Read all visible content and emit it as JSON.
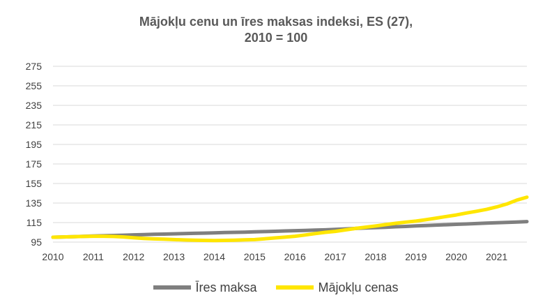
{
  "chart_data": {
    "type": "line",
    "title_line1": "Mājokļu cenu un īres maksas indeksi, ES (27),",
    "title_line2": "2010 = 100",
    "xlabel": "",
    "ylabel": "",
    "x_tick_labels": [
      "2010",
      "2011",
      "2012",
      "2013",
      "2014",
      "2015",
      "2016",
      "2017",
      "2018",
      "2019",
      "2020",
      "2021"
    ],
    "y_ticks": [
      95,
      115,
      135,
      155,
      175,
      195,
      215,
      235,
      255,
      275
    ],
    "ylim": [
      95,
      275
    ],
    "xlim": [
      2010,
      2021.75
    ],
    "grid": "horizontal",
    "legend_position": "bottom",
    "x": [
      2010,
      2010.25,
      2010.5,
      2010.75,
      2011,
      2011.25,
      2011.5,
      2011.75,
      2012,
      2012.25,
      2012.5,
      2012.75,
      2013,
      2013.25,
      2013.5,
      2013.75,
      2014,
      2014.25,
      2014.5,
      2014.75,
      2015,
      2015.25,
      2015.5,
      2015.75,
      2016,
      2016.25,
      2016.5,
      2016.75,
      2017,
      2017.25,
      2017.5,
      2017.75,
      2018,
      2018.25,
      2018.5,
      2018.75,
      2019,
      2019.25,
      2019.5,
      2019.75,
      2020,
      2020.25,
      2020.5,
      2020.75,
      2021,
      2021.25,
      2021.5,
      2021.75
    ],
    "series": [
      {
        "name": "Īres maksa",
        "color": "#7f7f7f",
        "values": [
          100,
          100.3,
          100.6,
          100.9,
          101.2,
          101.5,
          101.8,
          102.1,
          102.4,
          102.7,
          103,
          103.2,
          103.5,
          103.8,
          104,
          104.2,
          104.5,
          104.8,
          105,
          105.2,
          105.5,
          105.8,
          106.1,
          106.4,
          106.7,
          107,
          107.3,
          107.6,
          108,
          108.5,
          109,
          109.4,
          109.8,
          110.2,
          110.7,
          111.1,
          111.6,
          112,
          112.4,
          112.8,
          113.2,
          113.6,
          114,
          114.4,
          114.8,
          115.2,
          115.6,
          116
        ]
      },
      {
        "name": "Mājokļu cenas",
        "color": "#ffe600",
        "values": [
          100,
          100.3,
          100.6,
          100.8,
          101,
          101,
          100.8,
          100.3,
          99.5,
          98.8,
          98.3,
          98,
          97.6,
          97.2,
          97,
          96.8,
          96.6,
          96.8,
          97,
          97.3,
          97.6,
          98.4,
          99.3,
          100.1,
          101,
          102.3,
          103.7,
          105,
          106,
          107.5,
          109,
          110.3,
          111.5,
          112.9,
          114.3,
          115.5,
          116.5,
          118,
          119.6,
          121.2,
          122.8,
          124.8,
          126.6,
          128.5,
          131,
          134,
          138,
          141
        ]
      }
    ]
  }
}
